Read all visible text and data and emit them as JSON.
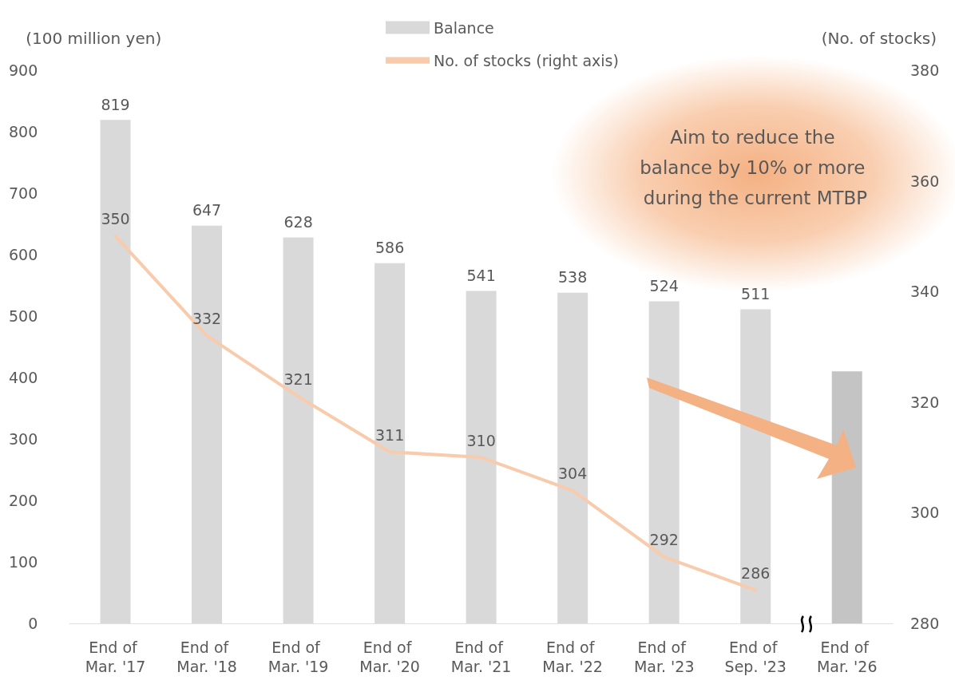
{
  "chart_data": {
    "type": "bar",
    "ylabel": "(100 million yen)",
    "y2label": "(No. of stocks)",
    "categories": [
      "End of Mar. '17",
      "End of Mar. '18",
      "End of Mar. '19",
      "End of Mar. '20",
      "End of Mar. '21",
      "End of Mar. '22",
      "End of Mar. '23",
      "End of Sep. '23",
      "End of Mar. '26"
    ],
    "series": [
      {
        "name": "Balance",
        "color": "#d9d9d9",
        "values": [
          819,
          647,
          628,
          586,
          541,
          538,
          524,
          511,
          410
        ],
        "colors": [
          "#d9d9d9",
          "#d9d9d9",
          "#d9d9d9",
          "#d9d9d9",
          "#d9d9d9",
          "#d9d9d9",
          "#d9d9d9",
          "#d9d9d9",
          "#c4c4c4"
        ],
        "value_labels": [
          "819",
          "647",
          "628",
          "586",
          "541",
          "538",
          "524",
          "511",
          null
        ]
      },
      {
        "name": "No. of stocks (right axis)",
        "type": "line",
        "axis": "y2",
        "color": "#f8cbad",
        "values": [
          350,
          332,
          321,
          311,
          310,
          304,
          292,
          286,
          null
        ],
        "value_labels": [
          "350",
          "332",
          "321",
          "311",
          "310",
          "304",
          "292",
          "286",
          null
        ],
        "marker": "none",
        "line_style": "solid"
      }
    ],
    "ylim": [
      0,
      900
    ],
    "yticks": [
      0,
      100,
      200,
      300,
      400,
      500,
      600,
      700,
      800,
      900
    ],
    "y2lim": [
      280,
      380
    ],
    "y2ticks": [
      280,
      300,
      320,
      340,
      360,
      380
    ],
    "grid": false,
    "legend": "top",
    "annotations": [
      "Aim to reduce the balance by 10% or more during the current MTBP"
    ]
  }
}
